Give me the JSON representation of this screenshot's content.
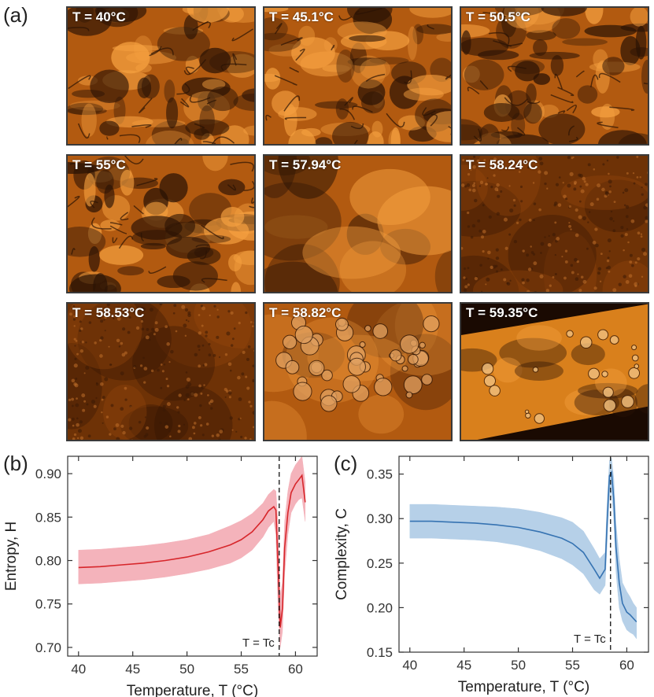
{
  "panels": {
    "a": "(a)",
    "b": "(b)",
    "c": "(c)"
  },
  "micrographs": [
    {
      "label": "T = 40°C",
      "texture": "dense"
    },
    {
      "label": "T = 45.1°C",
      "texture": "dense"
    },
    {
      "label": "T = 50.5°C",
      "texture": "dense"
    },
    {
      "label": "T = 55°C",
      "texture": "dense"
    },
    {
      "label": "T = 57.94°C",
      "texture": "smooth"
    },
    {
      "label": "T = 58.24°C",
      "texture": "grainy"
    },
    {
      "label": "T = 58.53°C",
      "texture": "grainy"
    },
    {
      "label": "T = 58.82°C",
      "texture": "bubbly"
    },
    {
      "label": "T = 59.35°C",
      "texture": "domain"
    }
  ],
  "colors": {
    "entropy_line": "#d7262b",
    "entropy_band": "#f4b3bb",
    "complexity_line": "#3673b2",
    "complexity_band": "#b6d0e8",
    "micro_dark": "#2a1204",
    "micro_mid": "#b25a10",
    "micro_light": "#f5a040"
  },
  "chart_data": [
    {
      "type": "line",
      "xlabel": "Temperature, T (°C)",
      "ylabel": "Entropy, H",
      "xlim": [
        39,
        62
      ],
      "ylim": [
        0.69,
        0.92
      ],
      "xticks": [
        40,
        45,
        50,
        55,
        60
      ],
      "yticks": [
        0.7,
        0.75,
        0.8,
        0.85,
        0.9
      ],
      "annotation": "T = Tc",
      "tc": 58.5,
      "series": [
        {
          "x": [
            40,
            42,
            44,
            46,
            48,
            50,
            52,
            54,
            55,
            56,
            57,
            57.5,
            58.0,
            58.2,
            58.4,
            58.6,
            58.8,
            59.0,
            59.3,
            59.6,
            60.0,
            60.3,
            60.6,
            60.9
          ],
          "y": [
            0.792,
            0.793,
            0.795,
            0.797,
            0.8,
            0.804,
            0.81,
            0.818,
            0.824,
            0.833,
            0.847,
            0.857,
            0.862,
            0.858,
            0.79,
            0.723,
            0.745,
            0.815,
            0.855,
            0.878,
            0.888,
            0.893,
            0.898,
            0.867
          ],
          "lower": [
            0.773,
            0.774,
            0.776,
            0.778,
            0.781,
            0.785,
            0.79,
            0.797,
            0.803,
            0.812,
            0.827,
            0.838,
            0.845,
            0.83,
            0.74,
            0.7,
            0.718,
            0.785,
            0.83,
            0.855,
            0.865,
            0.87,
            0.872,
            0.845
          ],
          "upper": [
            0.812,
            0.813,
            0.815,
            0.817,
            0.82,
            0.824,
            0.83,
            0.84,
            0.846,
            0.854,
            0.866,
            0.876,
            0.882,
            0.88,
            0.84,
            0.76,
            0.775,
            0.845,
            0.88,
            0.9,
            0.91,
            0.915,
            0.92,
            0.89
          ]
        }
      ]
    },
    {
      "type": "line",
      "xlabel": "Temperature, T (°C)",
      "ylabel": "Complexity, C",
      "xlim": [
        39,
        62
      ],
      "ylim": [
        0.15,
        0.37
      ],
      "xticks": [
        40,
        45,
        50,
        55,
        60
      ],
      "yticks": [
        0.15,
        0.2,
        0.25,
        0.3,
        0.35
      ],
      "annotation": "T = Tc",
      "tc": 58.5,
      "series": [
        {
          "x": [
            40,
            42,
            44,
            46,
            48,
            50,
            52,
            54,
            55,
            56,
            57,
            57.5,
            58.0,
            58.2,
            58.4,
            58.6,
            58.8,
            59.0,
            59.3,
            59.6,
            60.0,
            60.3,
            60.6,
            60.9
          ],
          "y": [
            0.297,
            0.297,
            0.296,
            0.295,
            0.293,
            0.29,
            0.285,
            0.278,
            0.272,
            0.262,
            0.243,
            0.233,
            0.243,
            0.3,
            0.348,
            0.352,
            0.322,
            0.268,
            0.228,
            0.205,
            0.195,
            0.192,
            0.188,
            0.184
          ],
          "lower": [
            0.278,
            0.278,
            0.277,
            0.276,
            0.274,
            0.27,
            0.264,
            0.255,
            0.248,
            0.238,
            0.22,
            0.215,
            0.225,
            0.275,
            0.325,
            0.33,
            0.298,
            0.24,
            0.2,
            0.185,
            0.175,
            0.172,
            0.17,
            0.165
          ],
          "upper": [
            0.316,
            0.316,
            0.315,
            0.314,
            0.313,
            0.311,
            0.307,
            0.301,
            0.296,
            0.286,
            0.266,
            0.255,
            0.262,
            0.322,
            0.365,
            0.368,
            0.345,
            0.295,
            0.255,
            0.228,
            0.218,
            0.212,
            0.205,
            0.2
          ]
        }
      ]
    }
  ]
}
